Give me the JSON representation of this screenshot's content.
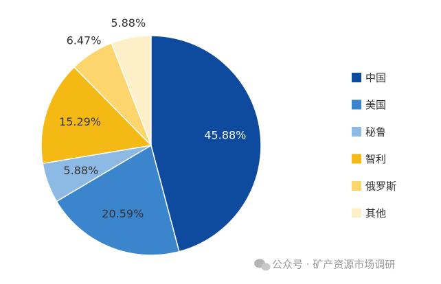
{
  "chart_data": {
    "type": "pie",
    "categories": [
      "中国",
      "美国",
      "秘鲁",
      "智利",
      "俄罗斯",
      "其他"
    ],
    "values": [
      45.88,
      20.59,
      5.88,
      15.29,
      6.47,
      5.88
    ],
    "value_labels": [
      "45.88%",
      "20.59%",
      "5.88%",
      "15.29%",
      "6.47%",
      "5.88%"
    ],
    "colors": [
      "#0e4a9e",
      "#3b85cd",
      "#8dbae4",
      "#f5b915",
      "#fcd56c",
      "#fdf0c9"
    ],
    "legend": "right"
  },
  "watermark": "公众号 · 矿产资源市场调研"
}
